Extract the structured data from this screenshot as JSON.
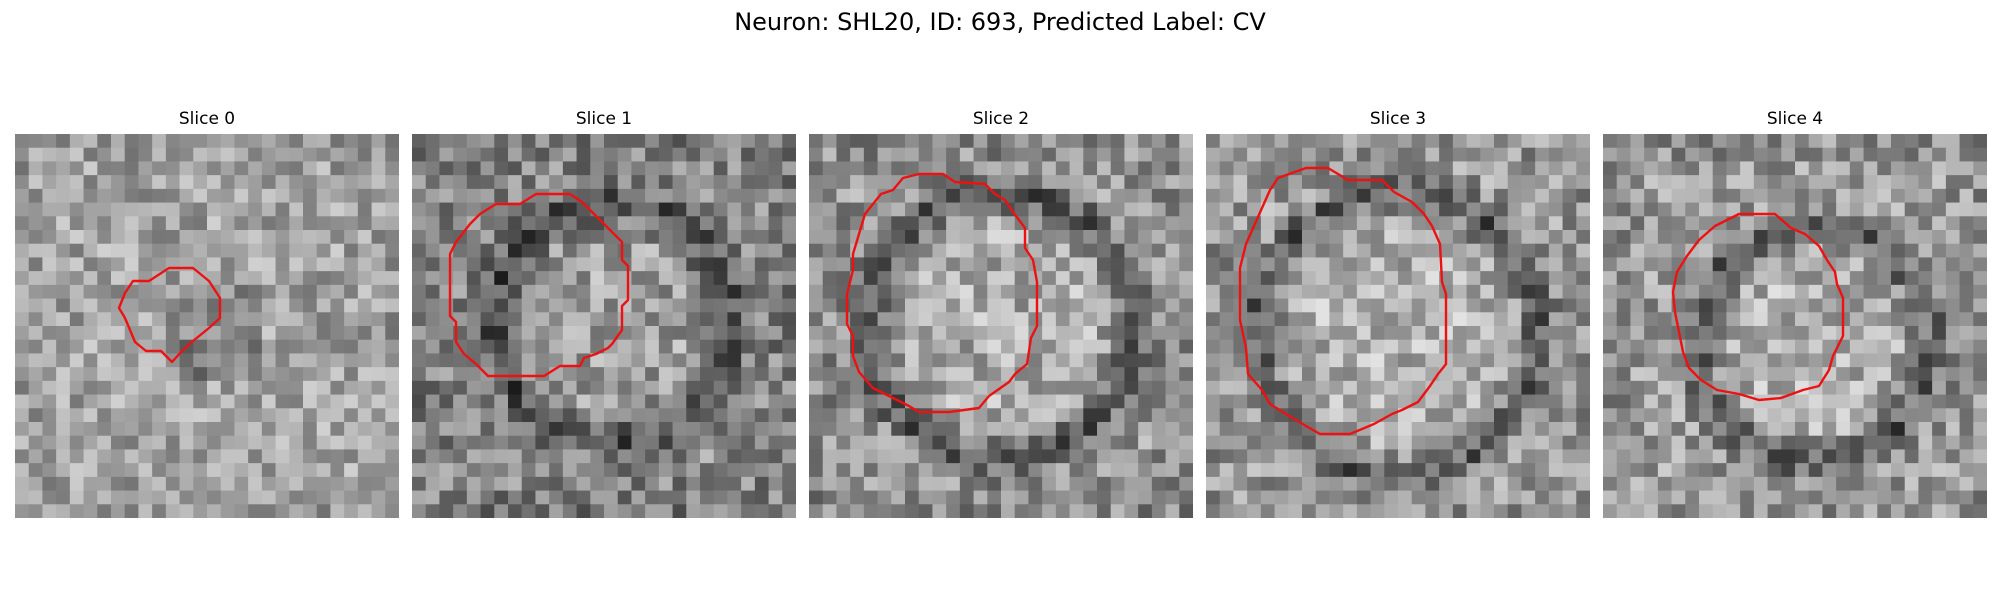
{
  "figure": {
    "title": "Neuron: SHL20, ID: 693, Predicted Label: CV",
    "contour_color": "#ee1111",
    "panels": [
      {
        "title": "Slice 0",
        "seed": 11,
        "vignette": 0.12,
        "dark_ring": false,
        "mean": 0.64,
        "contrast": 0.18
      },
      {
        "title": "Slice 1",
        "seed": 23,
        "vignette": 0.25,
        "dark_ring": true,
        "mean": 0.55,
        "contrast": 0.2
      },
      {
        "title": "Slice 2",
        "seed": 37,
        "vignette": 0.22,
        "dark_ring": true,
        "mean": 0.6,
        "contrast": 0.2
      },
      {
        "title": "Slice 3",
        "seed": 51,
        "vignette": 0.18,
        "dark_ring": true,
        "mean": 0.62,
        "contrast": 0.2
      },
      {
        "title": "Slice 4",
        "seed": 67,
        "vignette": 0.2,
        "dark_ring": true,
        "mean": 0.62,
        "contrast": 0.2
      }
    ]
  }
}
